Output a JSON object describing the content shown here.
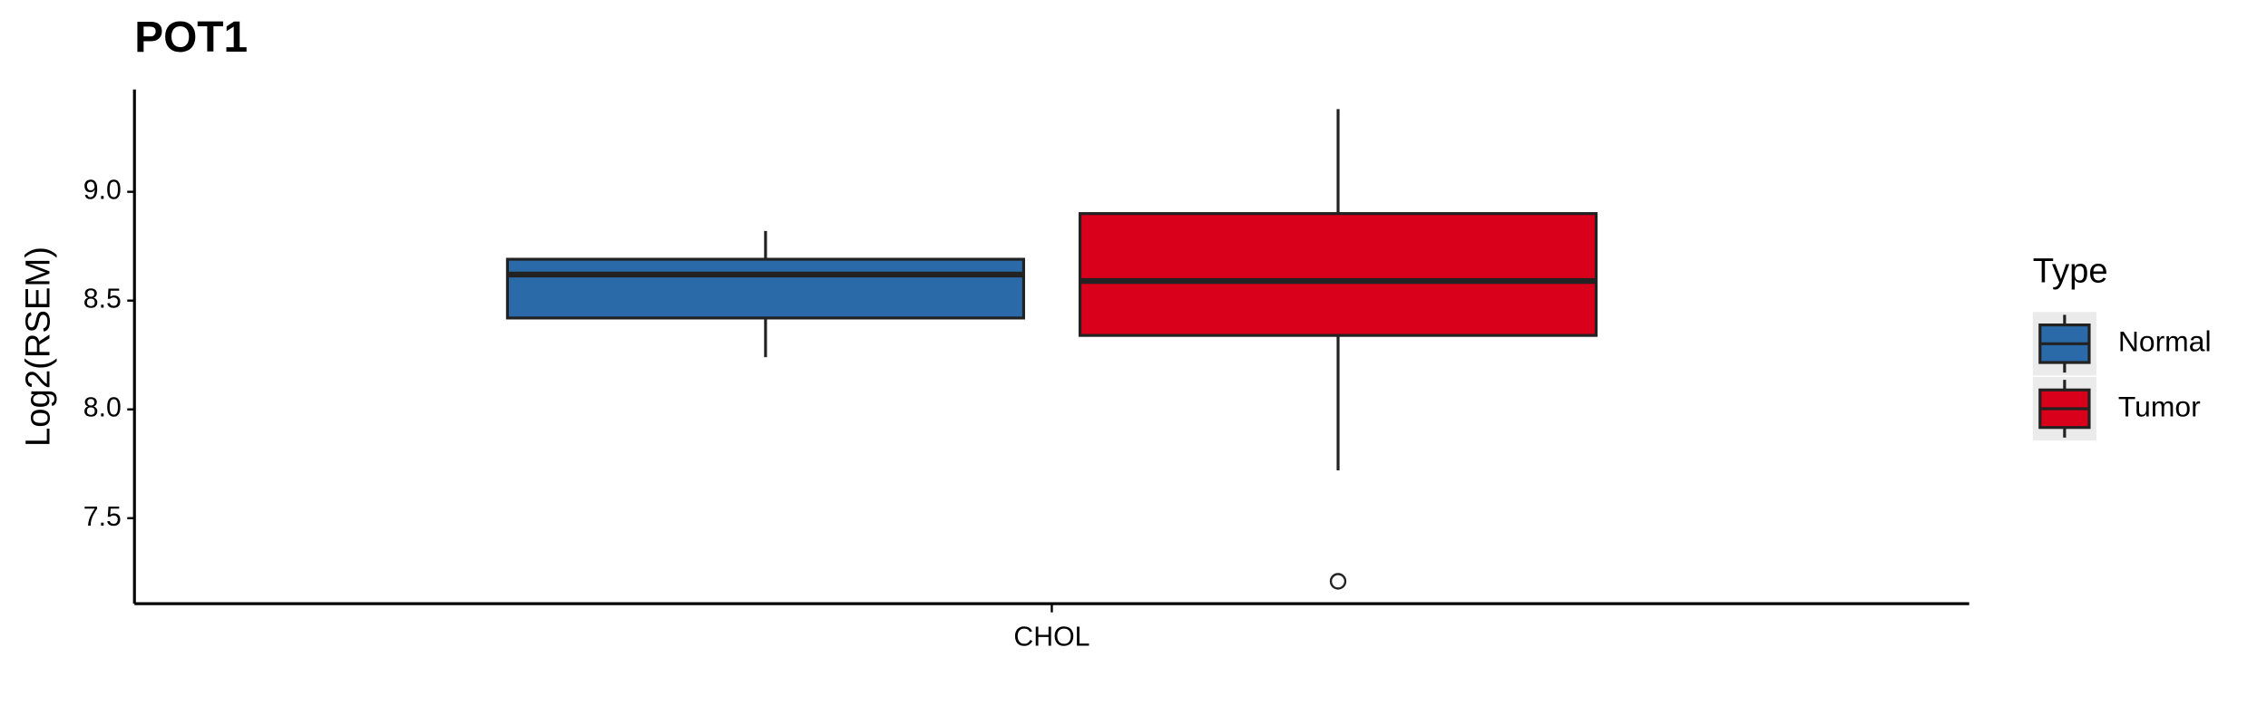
{
  "chart_data": {
    "type": "box",
    "title": "POT1",
    "y_label": "Log2(RSEM)",
    "categories": [
      "CHOL"
    ],
    "legend_title": "Type",
    "series": [
      {
        "name": "Normal",
        "color": "#2b6aa8",
        "whisker_low": [
          8.24
        ],
        "q1": [
          8.42
        ],
        "median": [
          8.62
        ],
        "q3": [
          8.69
        ],
        "whisker_high": [
          8.82
        ],
        "outliers": [
          []
        ]
      },
      {
        "name": "Tumor",
        "color": "#d8001a",
        "whisker_low": [
          7.72
        ],
        "q1": [
          8.34
        ],
        "median": [
          8.59
        ],
        "q3": [
          8.9
        ],
        "whisker_high": [
          9.38
        ],
        "outliers": [
          [
            7.21
          ]
        ]
      }
    ],
    "ylim": [
      7.107,
      9.47
    ],
    "yticks": [
      {
        "value": 7.5,
        "label": "7.5"
      },
      {
        "value": 8,
        "label": "8.0"
      },
      {
        "value": 8.5,
        "label": "8.5"
      },
      {
        "value": 9,
        "label": "9.0"
      }
    ],
    "grid": false
  }
}
